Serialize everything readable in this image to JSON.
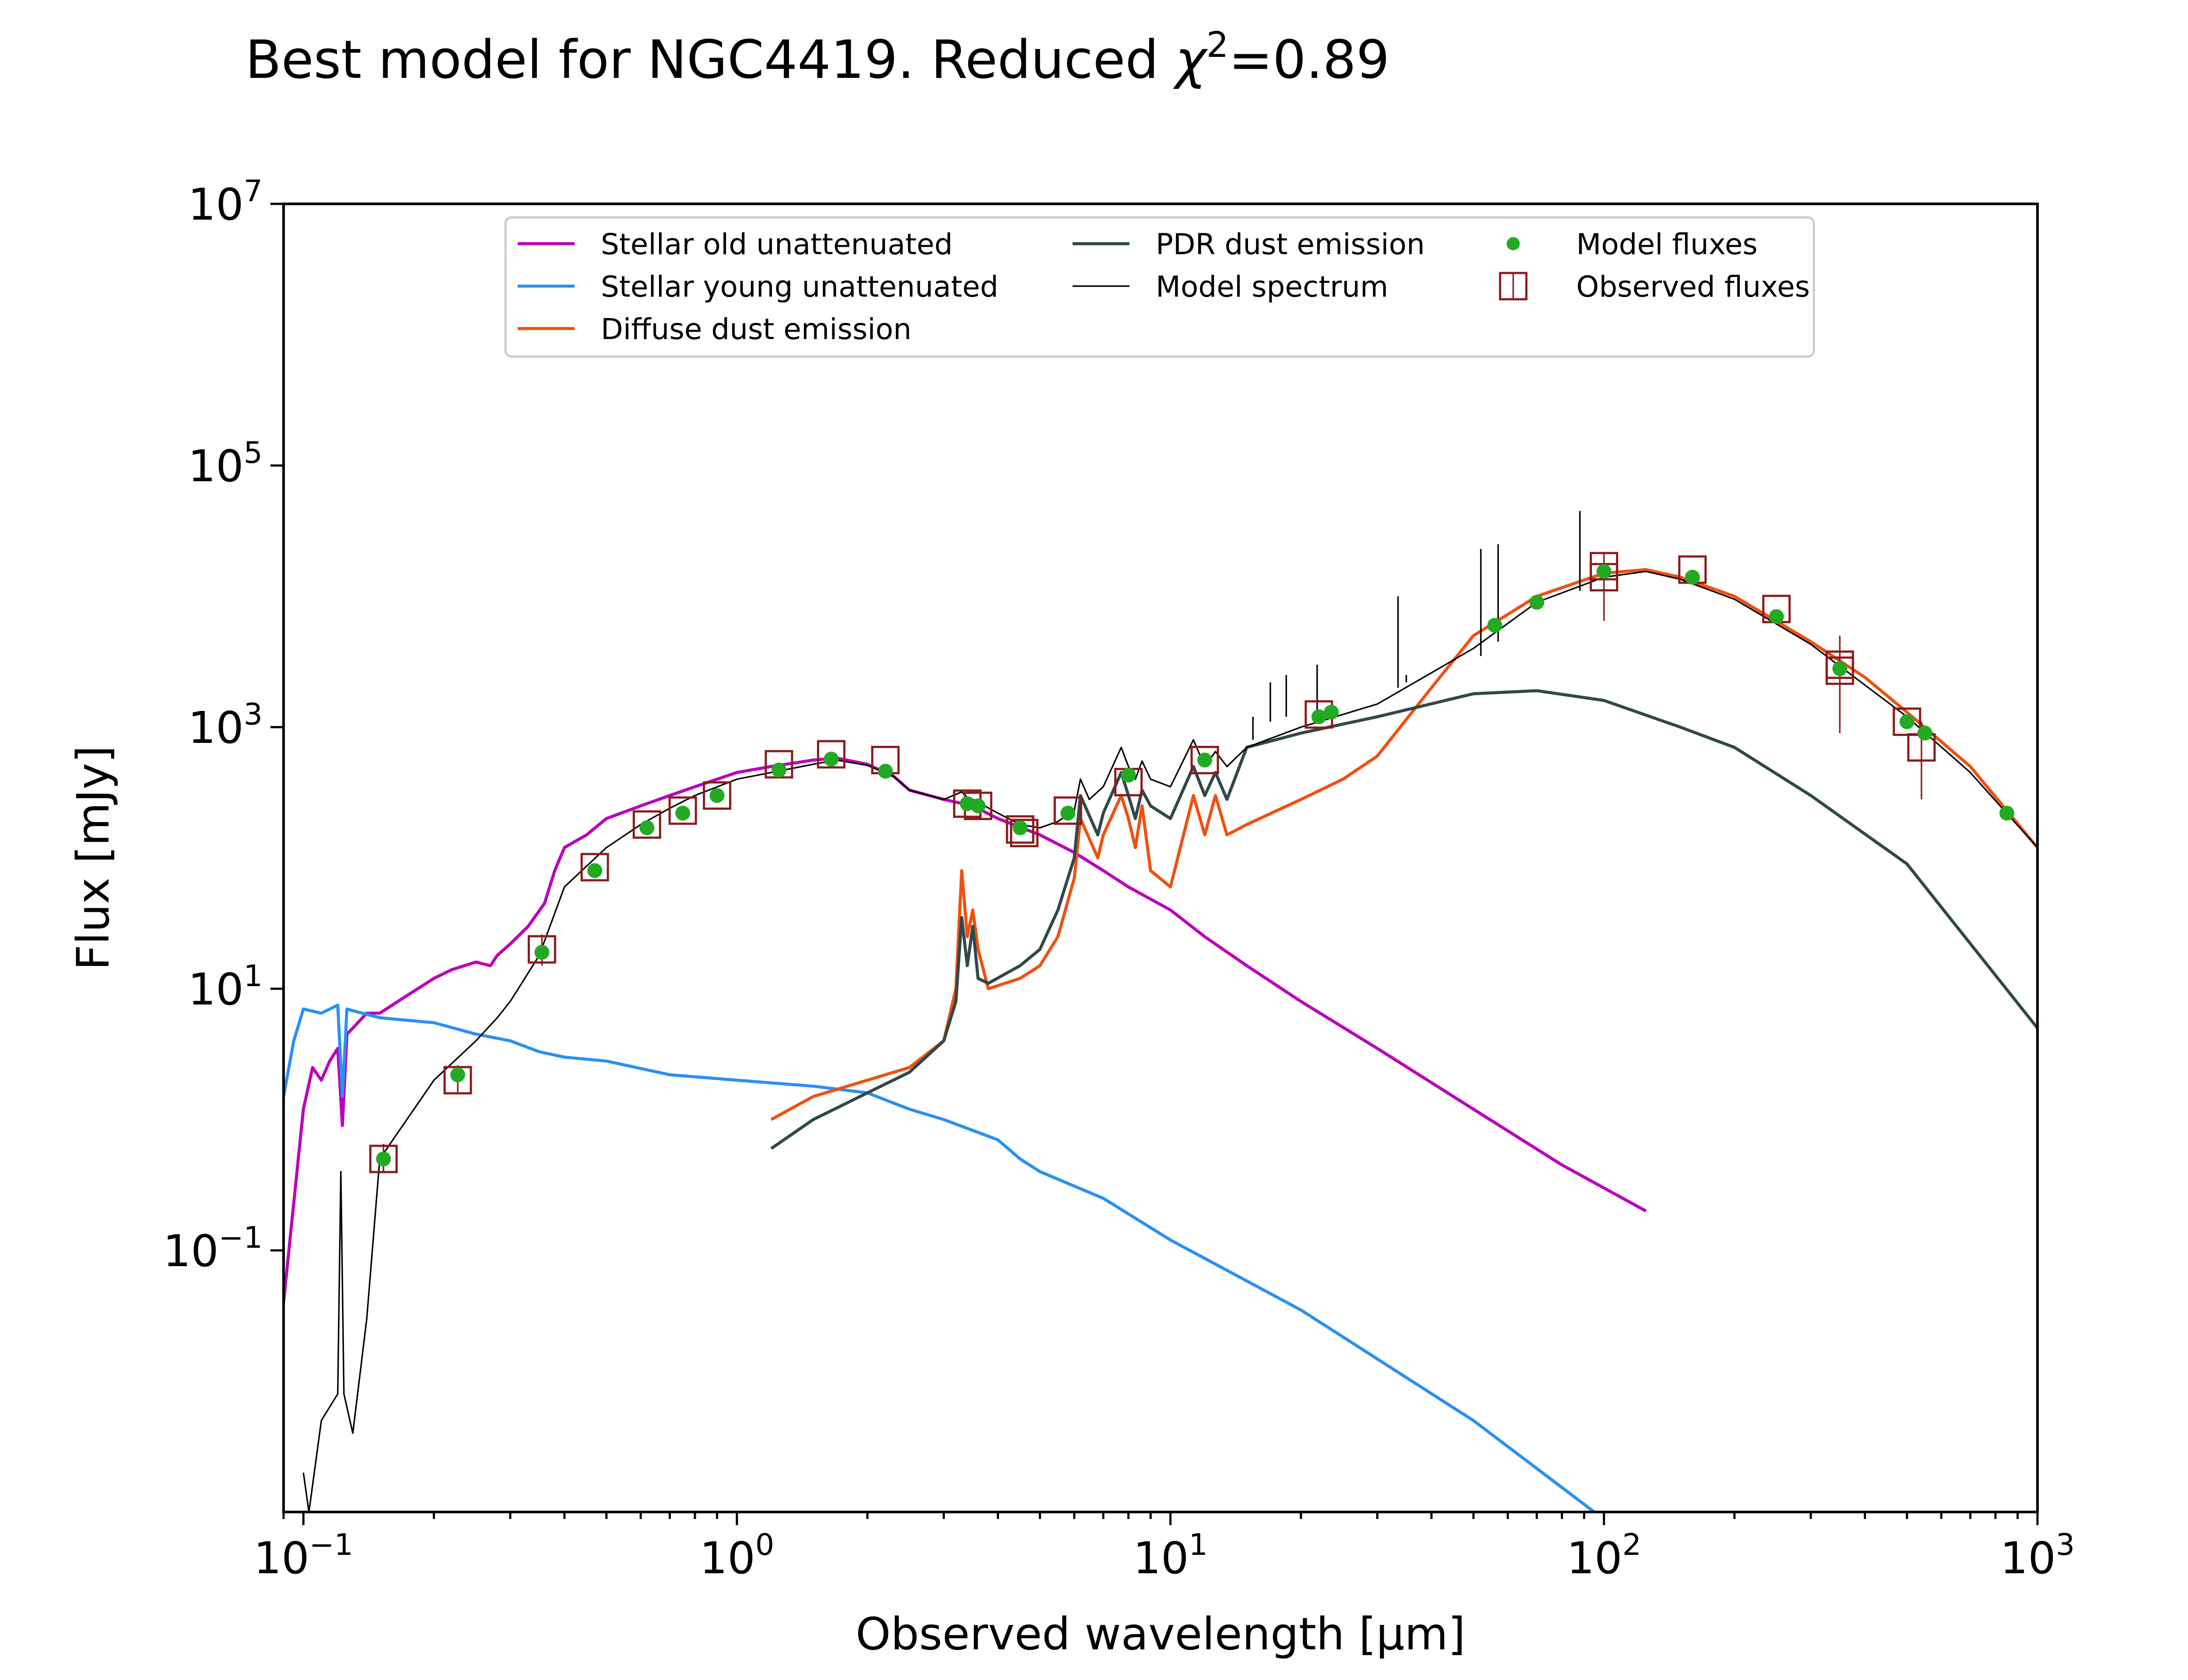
{
  "figure": {
    "title_prefix": "Best model for NGC4419. Reduced ",
    "title_chi": "χ",
    "title_exp": "2",
    "title_suffix": "=0.89"
  },
  "chart_data": {
    "type": "line",
    "title": "Best model for NGC4419. Reduced χ²=0.89",
    "xlabel": "Observed wavelength [μm]",
    "ylabel": "Flux [mJy]",
    "xscale": "log",
    "yscale": "log",
    "xlim": [
      0.09,
      1000
    ],
    "ylim": [
      0.001,
      10000000
    ],
    "x_ticks": [
      {
        "value": 0.1,
        "base": "10",
        "exp": "−1"
      },
      {
        "value": 1,
        "base": "10",
        "exp": "0"
      },
      {
        "value": 10,
        "base": "10",
        "exp": "1"
      },
      {
        "value": 100,
        "base": "10",
        "exp": "2"
      },
      {
        "value": 1000,
        "base": "10",
        "exp": "3"
      }
    ],
    "y_ticks": [
      {
        "value": 0.1,
        "base": "10",
        "exp": "−1"
      },
      {
        "value": 10,
        "base": "10",
        "exp": "1"
      },
      {
        "value": 1000,
        "base": "10",
        "exp": "3"
      },
      {
        "value": 100000,
        "base": "10",
        "exp": "5"
      },
      {
        "value": 10000000,
        "base": "10",
        "exp": "7"
      }
    ],
    "grid": false,
    "legend_position": "top-center",
    "series": [
      {
        "name": "Stellar old unattenuated",
        "color": "#bb00bb",
        "width": 2,
        "points": [
          [
            0.09,
            0.04
          ],
          [
            0.1,
            1.2
          ],
          [
            0.105,
            2.5
          ],
          [
            0.11,
            2.0
          ],
          [
            0.115,
            2.8
          ],
          [
            0.12,
            3.5
          ],
          [
            0.123,
            0.9
          ],
          [
            0.126,
            4.5
          ],
          [
            0.13,
            5.0
          ],
          [
            0.14,
            6.5
          ],
          [
            0.15,
            6.5
          ],
          [
            0.17,
            8.5
          ],
          [
            0.2,
            12
          ],
          [
            0.22,
            14
          ],
          [
            0.25,
            16
          ],
          [
            0.27,
            15
          ],
          [
            0.28,
            18
          ],
          [
            0.3,
            22
          ],
          [
            0.33,
            30
          ],
          [
            0.36,
            45
          ],
          [
            0.38,
            80
          ],
          [
            0.4,
            120
          ],
          [
            0.45,
            150
          ],
          [
            0.5,
            200
          ],
          [
            0.6,
            250
          ],
          [
            0.7,
            300
          ],
          [
            0.8,
            350
          ],
          [
            0.9,
            400
          ],
          [
            1.0,
            450
          ],
          [
            1.2,
            500
          ],
          [
            1.5,
            560
          ],
          [
            1.7,
            580
          ],
          [
            2.0,
            520
          ],
          [
            2.3,
            420
          ],
          [
            2.5,
            330
          ],
          [
            3.0,
            280
          ],
          [
            3.5,
            250
          ],
          [
            4.0,
            200
          ],
          [
            5.0,
            150
          ],
          [
            6.0,
            110
          ],
          [
            7.0,
            80
          ],
          [
            8.0,
            60
          ],
          [
            10.0,
            40
          ],
          [
            12.0,
            25
          ],
          [
            15.0,
            15
          ],
          [
            20.0,
            8
          ],
          [
            30.0,
            3.5
          ],
          [
            50.0,
            1.2
          ],
          [
            80.0,
            0.45
          ],
          [
            125,
            0.2
          ]
        ]
      },
      {
        "name": "Stellar young unattenuated",
        "color": "#2b90f0",
        "width": 2,
        "points": [
          [
            0.09,
            1.5
          ],
          [
            0.095,
            4
          ],
          [
            0.1,
            7.0
          ],
          [
            0.11,
            6.5
          ],
          [
            0.12,
            7.5
          ],
          [
            0.123,
            1.5
          ],
          [
            0.126,
            7
          ],
          [
            0.13,
            6.8
          ],
          [
            0.15,
            6.0
          ],
          [
            0.2,
            5.5
          ],
          [
            0.25,
            4.5
          ],
          [
            0.3,
            4.0
          ],
          [
            0.35,
            3.3
          ],
          [
            0.4,
            3.0
          ],
          [
            0.5,
            2.8
          ],
          [
            0.7,
            2.2
          ],
          [
            1.0,
            2.0
          ],
          [
            1.5,
            1.8
          ],
          [
            2.0,
            1.6
          ],
          [
            2.5,
            1.2
          ],
          [
            3.0,
            1.0
          ],
          [
            4.0,
            0.7
          ],
          [
            4.5,
            0.5
          ],
          [
            5.0,
            0.4
          ],
          [
            7.0,
            0.25
          ],
          [
            10.0,
            0.12
          ],
          [
            20.0,
            0.035
          ],
          [
            50.0,
            0.005
          ],
          [
            95.0,
            0.001
          ]
        ]
      },
      {
        "name": "Diffuse dust emission",
        "color": "#f05010",
        "width": 2,
        "points": [
          [
            1.2,
            1.0
          ],
          [
            1.5,
            1.5
          ],
          [
            2.0,
            2.0
          ],
          [
            2.5,
            2.5
          ],
          [
            3.0,
            4.0
          ],
          [
            3.2,
            10
          ],
          [
            3.3,
            80
          ],
          [
            3.4,
            25
          ],
          [
            3.5,
            40
          ],
          [
            3.6,
            20
          ],
          [
            3.8,
            10
          ],
          [
            4.5,
            12
          ],
          [
            5.0,
            15
          ],
          [
            5.5,
            25
          ],
          [
            6.0,
            70
          ],
          [
            6.2,
            200
          ],
          [
            6.8,
            100
          ],
          [
            7.0,
            150
          ],
          [
            7.7,
            300
          ],
          [
            8.0,
            200
          ],
          [
            8.3,
            120
          ],
          [
            8.6,
            250
          ],
          [
            9.0,
            80
          ],
          [
            10.0,
            60
          ],
          [
            11.3,
            300
          ],
          [
            12.0,
            150
          ],
          [
            12.7,
            300
          ],
          [
            13.5,
            150
          ],
          [
            15,
            180
          ],
          [
            20,
            280
          ],
          [
            25,
            400
          ],
          [
            30,
            600
          ],
          [
            40,
            2000
          ],
          [
            50,
            5000
          ],
          [
            70,
            10000
          ],
          [
            100,
            15000
          ],
          [
            125,
            16000
          ],
          [
            150,
            14000
          ],
          [
            200,
            10000
          ],
          [
            300,
            4500
          ],
          [
            400,
            2400
          ],
          [
            500,
            1300
          ],
          [
            700,
            500
          ],
          [
            1000,
            120
          ]
        ]
      },
      {
        "name": "PDR dust emission",
        "color": "#304848",
        "width": 2,
        "points": [
          [
            1.2,
            0.6
          ],
          [
            1.5,
            1.0
          ],
          [
            2.0,
            1.6
          ],
          [
            2.5,
            2.3
          ],
          [
            3.0,
            4.0
          ],
          [
            3.2,
            8
          ],
          [
            3.3,
            35
          ],
          [
            3.4,
            15
          ],
          [
            3.5,
            30
          ],
          [
            3.6,
            12
          ],
          [
            3.8,
            11
          ],
          [
            4.5,
            15
          ],
          [
            5.0,
            20
          ],
          [
            5.5,
            40
          ],
          [
            6.0,
            100
          ],
          [
            6.2,
            300
          ],
          [
            6.8,
            150
          ],
          [
            7.0,
            220
          ],
          [
            7.7,
            450
          ],
          [
            8.0,
            300
          ],
          [
            8.3,
            200
          ],
          [
            8.6,
            330
          ],
          [
            9.0,
            250
          ],
          [
            10.0,
            200
          ],
          [
            11.3,
            500
          ],
          [
            12.0,
            300
          ],
          [
            12.7,
            450
          ],
          [
            13.5,
            280
          ],
          [
            15,
            700
          ],
          [
            20,
            900
          ],
          [
            30,
            1200
          ],
          [
            50,
            1800
          ],
          [
            70,
            1900
          ],
          [
            100,
            1600
          ],
          [
            150,
            1000
          ],
          [
            200,
            700
          ],
          [
            300,
            300
          ],
          [
            500,
            90
          ],
          [
            1000,
            5
          ]
        ]
      },
      {
        "name": "Model spectrum",
        "color": "#000000",
        "width": 1,
        "points": [
          [
            0.1,
            0.002
          ],
          [
            0.103,
            0.001
          ],
          [
            0.11,
            0.005
          ],
          [
            0.12,
            0.008
          ],
          [
            0.122,
            0.4
          ],
          [
            0.124,
            0.008
          ],
          [
            0.13,
            0.004
          ],
          [
            0.14,
            0.03
          ],
          [
            0.15,
            0.5
          ],
          [
            0.2,
            2.0
          ],
          [
            0.25,
            4.0
          ],
          [
            0.28,
            6
          ],
          [
            0.3,
            8
          ],
          [
            0.35,
            18
          ],
          [
            0.4,
            60
          ],
          [
            0.5,
            120
          ],
          [
            0.6,
            180
          ],
          [
            0.7,
            240
          ],
          [
            0.8,
            300
          ],
          [
            1.0,
            400
          ],
          [
            1.2,
            450
          ],
          [
            1.5,
            520
          ],
          [
            1.7,
            560
          ],
          [
            2.0,
            510
          ],
          [
            2.3,
            420
          ],
          [
            2.5,
            330
          ],
          [
            3.0,
            280
          ],
          [
            3.3,
            320
          ],
          [
            3.4,
            290
          ],
          [
            3.5,
            280
          ],
          [
            4.0,
            220
          ],
          [
            4.5,
            180
          ],
          [
            5.0,
            170
          ],
          [
            5.5,
            190
          ],
          [
            6.0,
            230
          ],
          [
            6.2,
            400
          ],
          [
            6.5,
            280
          ],
          [
            7.0,
            350
          ],
          [
            7.7,
            700
          ],
          [
            8.0,
            500
          ],
          [
            8.3,
            400
          ],
          [
            8.6,
            550
          ],
          [
            9.0,
            400
          ],
          [
            10.0,
            350
          ],
          [
            11.3,
            800
          ],
          [
            12.0,
            500
          ],
          [
            12.7,
            650
          ],
          [
            13.5,
            500
          ],
          [
            15,
            700
          ],
          [
            20,
            1000
          ],
          [
            30,
            1500
          ],
          [
            40,
            2600
          ],
          [
            50,
            4000
          ],
          [
            70,
            9000
          ],
          [
            100,
            14000
          ],
          [
            125,
            15500
          ],
          [
            150,
            13500
          ],
          [
            200,
            9500
          ],
          [
            300,
            4300
          ],
          [
            500,
            1200
          ],
          [
            700,
            450
          ],
          [
            1000,
            120
          ]
        ]
      }
    ],
    "spikes": [
      [
        15.5,
        800,
        1200
      ],
      [
        17,
        1100,
        2200
      ],
      [
        18.5,
        1200,
        2500
      ],
      [
        21.8,
        1300,
        3000
      ],
      [
        33.5,
        2000,
        10000
      ],
      [
        35,
        2200,
        2500
      ],
      [
        52,
        3500,
        23000
      ],
      [
        57,
        4500,
        25000
      ],
      [
        88,
        11000,
        45000
      ]
    ],
    "model_fluxes": {
      "name": "Model fluxes",
      "color": "#22aa22",
      "points": [
        [
          0.153,
          0.5
        ],
        [
          0.227,
          2.2
        ],
        [
          0.355,
          19
        ],
        [
          0.47,
          80
        ],
        [
          0.62,
          170
        ],
        [
          0.75,
          220
        ],
        [
          0.9,
          300
        ],
        [
          1.25,
          470
        ],
        [
          1.65,
          570
        ],
        [
          2.2,
          460
        ],
        [
          3.4,
          260
        ],
        [
          3.6,
          250
        ],
        [
          4.5,
          170
        ],
        [
          5.8,
          220
        ],
        [
          8.0,
          430
        ],
        [
          12,
          560
        ],
        [
          22,
          1200
        ],
        [
          23.5,
          1300
        ],
        [
          56,
          6000
        ],
        [
          70,
          9000
        ],
        [
          100,
          15500
        ],
        [
          160,
          14000
        ],
        [
          250,
          7000
        ],
        [
          350,
          2800
        ],
        [
          500,
          1100
        ],
        [
          550,
          900
        ],
        [
          850,
          220
        ]
      ]
    },
    "observed_fluxes": {
      "name": "Observed fluxes",
      "color": "#8b1a1a",
      "points": [
        [
          0.153,
          0.5
        ],
        [
          0.227,
          2.0
        ],
        [
          0.355,
          20
        ],
        [
          0.47,
          85
        ],
        [
          0.62,
          180
        ],
        [
          0.75,
          230
        ],
        [
          0.9,
          300
        ],
        [
          1.25,
          520
        ],
        [
          1.65,
          620
        ],
        [
          2.2,
          560
        ],
        [
          3.4,
          260
        ],
        [
          3.6,
          250
        ],
        [
          4.5,
          165
        ],
        [
          4.6,
          155
        ],
        [
          5.8,
          230
        ],
        [
          8.0,
          380
        ],
        [
          12,
          560
        ],
        [
          22,
          1250
        ],
        [
          100,
          17000
        ],
        [
          100,
          14000
        ],
        [
          160,
          16000
        ],
        [
          250,
          8000
        ],
        [
          350,
          3000
        ],
        [
          350,
          2700
        ],
        [
          500,
          1100
        ],
        [
          540,
          700
        ]
      ],
      "error_bars": [
        [
          0.153,
          0.4,
          0.65
        ],
        [
          0.227,
          1.6,
          2.6
        ],
        [
          0.355,
          15,
          26
        ],
        [
          100,
          6500,
          21000
        ],
        [
          350,
          900,
          5000
        ],
        [
          540,
          280,
          1100
        ]
      ]
    }
  }
}
